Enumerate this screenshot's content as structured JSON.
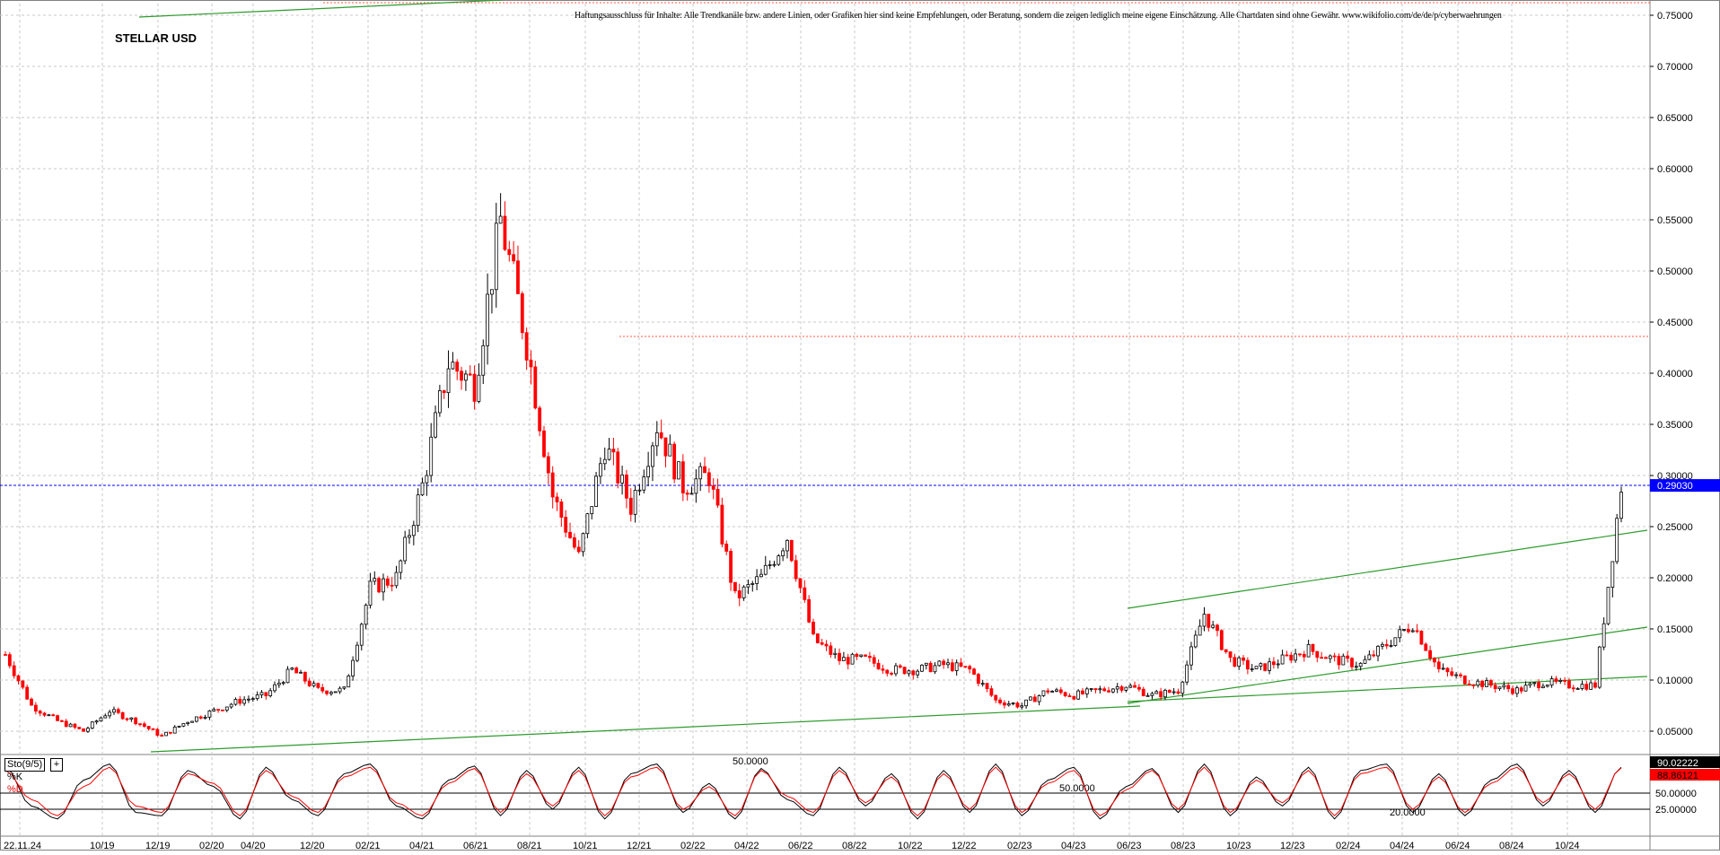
{
  "window": {
    "title": "STELLAR USD",
    "disclaimer": "Haftungsausschluss für Inhalte: Alle Trendkanäle bzw. andere Linien, oder Grafiken hier sind keine Empfehlungen, oder Beratung, sondern die zeigen lediglich meine eigene Einschätzung. Alle Chartdaten sind ohne Gewähr.  www.wikifolio.com/de/de/p/cyberwaehrungen"
  },
  "indicator": {
    "name": "Sto(9/5)",
    "button_label": "+",
    "k_label": "%K",
    "d_label": "%D",
    "k_value_label": "90.02222",
    "d_value_label": "88.86121",
    "level_labels": [
      "50.00000",
      "25.00000"
    ],
    "inline_labels": [
      "50.0000",
      "50.0000",
      "20.0000"
    ]
  },
  "colors": {
    "bull": "#000000",
    "bear": "#ff0000",
    "trendline": "#2e9b2e",
    "current_price": "#0000ff",
    "resistance": "#ff5a3c",
    "grid": "#c8c8c8"
  },
  "chart_data": [
    {
      "type": "candlestick",
      "title": "STELLAR USD",
      "x_tick_labels": [
        "22.11.24",
        "10/19",
        "12/19",
        "02/20",
        "04/20",
        "12/20",
        "02/21",
        "04/21",
        "06/21",
        "08/21",
        "10/21",
        "12/21",
        "02/22",
        "04/22",
        "06/22",
        "08/22",
        "10/22",
        "12/22",
        "02/23",
        "04/23",
        "06/23",
        "08/23",
        "10/23",
        "12/23",
        "02/24",
        "04/24",
        "06/24",
        "08/24",
        "10/24"
      ],
      "y_tick_labels": [
        "0.05000",
        "0.10000",
        "0.15000",
        "0.20000",
        "0.25000",
        "0.30000",
        "0.35000",
        "0.40000",
        "0.45000",
        "0.50000",
        "0.55000",
        "0.60000",
        "0.65000",
        "0.70000",
        "0.75000"
      ],
      "ylim": [
        0.03,
        0.76
      ],
      "grid": true,
      "current_price_label": "0.29030",
      "current_price": 0.2903,
      "resistance_level": 0.436,
      "series": [
        {
          "x": [
            "2019-09",
            "2019-10",
            "2019-11",
            "2019-12",
            "2020-01",
            "2020-02",
            "2020-03",
            "2020-04",
            "2020-05",
            "2020-06",
            "2020-07",
            "2020-08",
            "2020-09",
            "2020-10",
            "2020-11",
            "2020-12",
            "2021-01",
            "2021-02",
            "2021-03",
            "2021-04",
            "2021-05",
            "2021-06",
            "2021-07",
            "2021-08",
            "2021-09",
            "2021-10",
            "2021-11",
            "2021-12",
            "2022-01",
            "2022-02",
            "2022-03",
            "2022-04",
            "2022-05",
            "2022-06",
            "2022-07",
            "2022-08",
            "2022-09",
            "2022-10",
            "2022-11",
            "2022-12",
            "2023-01",
            "2023-02",
            "2023-03",
            "2023-04",
            "2023-05",
            "2023-06",
            "2023-07",
            "2023-08",
            "2023-09",
            "2023-10",
            "2023-11",
            "2023-12",
            "2024-01",
            "2024-02",
            "2024-03",
            "2024-04",
            "2024-05",
            "2024-06",
            "2024-07",
            "2024-08",
            "2024-09",
            "2024-10",
            "2024-11"
          ],
          "close": [
            0.125,
            0.075,
            0.06,
            0.05,
            0.07,
            0.06,
            0.045,
            0.06,
            0.07,
            0.08,
            0.085,
            0.11,
            0.09,
            0.09,
            0.19,
            0.2,
            0.29,
            0.41,
            0.39,
            0.55,
            0.43,
            0.28,
            0.22,
            0.33,
            0.27,
            0.35,
            0.29,
            0.3,
            0.18,
            0.2,
            0.24,
            0.14,
            0.12,
            0.12,
            0.11,
            0.11,
            0.115,
            0.11,
            0.08,
            0.075,
            0.09,
            0.085,
            0.09,
            0.095,
            0.085,
            0.09,
            0.165,
            0.12,
            0.11,
            0.12,
            0.13,
            0.12,
            0.115,
            0.135,
            0.155,
            0.11,
            0.1,
            0.095,
            0.09,
            0.098,
            0.095,
            0.095,
            0.2903
          ]
        }
      ]
    },
    {
      "type": "line",
      "title": "Sto(9/5)",
      "ylim": [
        0,
        100
      ],
      "levels": [
        25,
        50
      ],
      "series": [
        {
          "name": "%K",
          "values": [
            90,
            30,
            10,
            70,
            95,
            20,
            15,
            85,
            60,
            10,
            90,
            40,
            15,
            80,
            95,
            30,
            10,
            70,
            92,
            15,
            85,
            25,
            90,
            10,
            80,
            95,
            20,
            65,
            10,
            88,
            40,
            15,
            90,
            30,
            80,
            10,
            85,
            20,
            95,
            15,
            70,
            90,
            10,
            60,
            88,
            20,
            95,
            15,
            75,
            30,
            90,
            10,
            85,
            95,
            20,
            80,
            15,
            70,
            95,
            30,
            85,
            20,
            90
          ]
        },
        {
          "name": "%D",
          "values": [
            85,
            40,
            15,
            60,
            90,
            30,
            20,
            80,
            65,
            15,
            85,
            45,
            20,
            75,
            90,
            35,
            15,
            65,
            88,
            20,
            80,
            30,
            85,
            15,
            75,
            90,
            25,
            60,
            15,
            85,
            45,
            20,
            85,
            35,
            75,
            15,
            80,
            25,
            90,
            20,
            65,
            85,
            15,
            55,
            85,
            25,
            90,
            20,
            70,
            35,
            85,
            15,
            80,
            90,
            25,
            75,
            20,
            65,
            90,
            35,
            80,
            25,
            89
          ]
        }
      ]
    }
  ]
}
